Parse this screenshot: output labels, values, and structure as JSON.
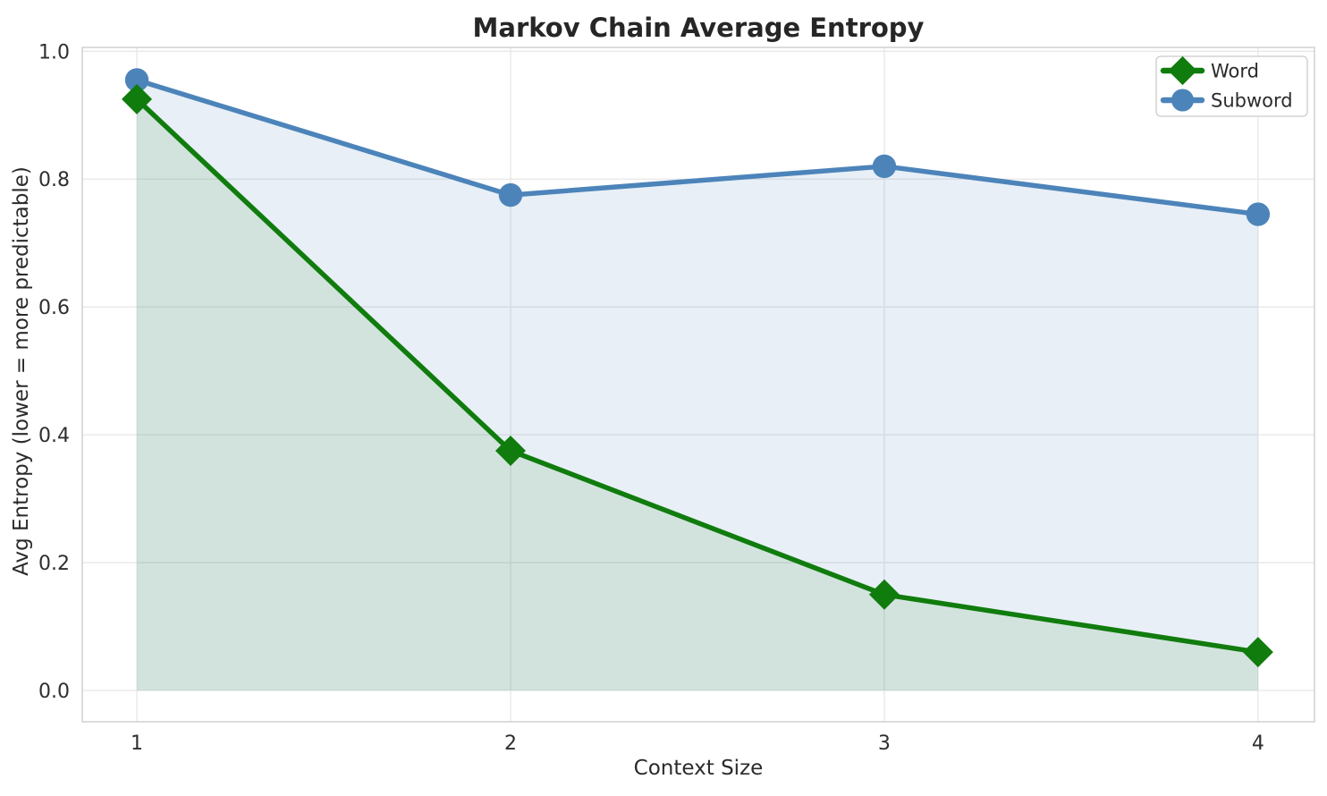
{
  "figure": {
    "background": "#ffffff",
    "grid_color": "#e7e7e7",
    "spine_color": "#d0d0d0",
    "text_color": "#262626"
  },
  "chart_data": {
    "type": "line",
    "title": "Markov Chain Average Entropy",
    "xlabel": "Context Size",
    "ylabel": "Avg Entropy (lower = more predictable)",
    "x": [
      1,
      2,
      3,
      4
    ],
    "series": [
      {
        "name": "Word",
        "values": [
          0.925,
          0.375,
          0.15,
          0.06
        ],
        "color": "#107c0d",
        "fill_color": "rgba(16,124,13,0.10)",
        "marker": "diamond"
      },
      {
        "name": "Subword",
        "values": [
          0.955,
          0.775,
          0.82,
          0.745
        ],
        "color": "#4c84ba",
        "fill_color": "rgba(76,132,186,0.13)",
        "marker": "circle"
      }
    ],
    "xticks": [
      1,
      2,
      3,
      4
    ],
    "yticks": [
      0.0,
      0.2,
      0.4,
      0.6,
      0.8,
      1.0
    ],
    "xlim": [
      0.854,
      4.151
    ],
    "ylim": [
      -0.049,
      1.006
    ],
    "grid": true,
    "area_fill_to": 0,
    "legend_position": "upper right",
    "legend_items": [
      "Word",
      "Subword"
    ]
  }
}
